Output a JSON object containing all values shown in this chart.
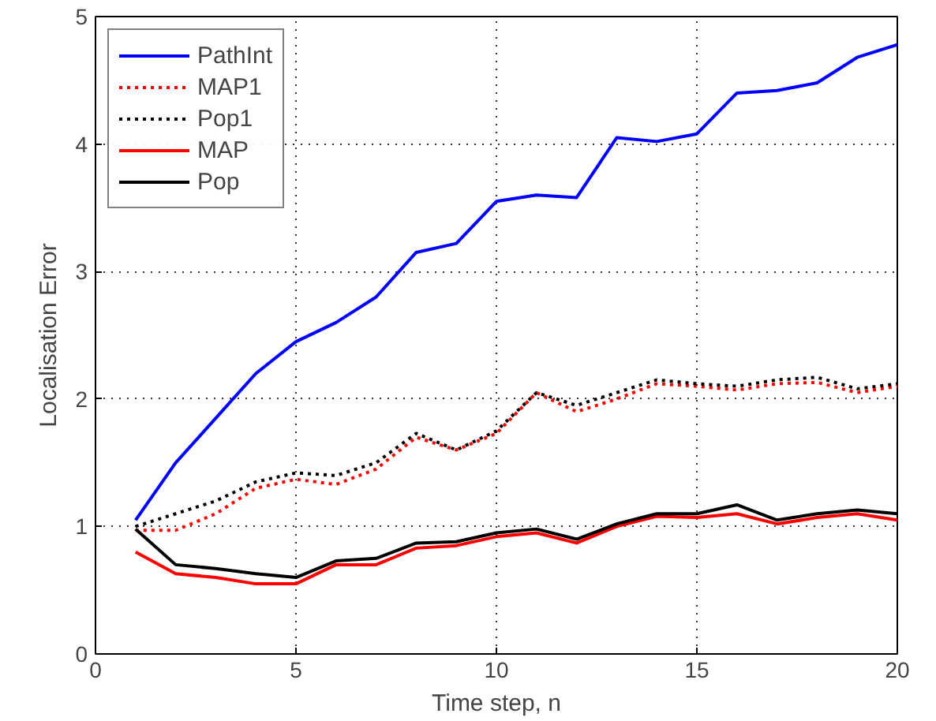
{
  "chart_data": {
    "type": "line",
    "xlabel": "Time step, n",
    "ylabel": "Localisation Error",
    "x": [
      1,
      2,
      3,
      4,
      5,
      6,
      7,
      8,
      9,
      10,
      11,
      12,
      13,
      14,
      15,
      16,
      17,
      18,
      19,
      20
    ],
    "xlim": [
      0,
      20
    ],
    "xticks": [
      0,
      5,
      10,
      15,
      20
    ],
    "ylim": [
      0,
      5
    ],
    "yticks": [
      0,
      1,
      2,
      3,
      4,
      5
    ],
    "grid": true,
    "legend": "top left",
    "marker": "none",
    "series": [
      {
        "name": "PathInt",
        "color": "#0000ff",
        "line_style": "solid",
        "values": [
          1.05,
          1.5,
          1.85,
          2.2,
          2.45,
          2.6,
          2.8,
          3.15,
          3.22,
          3.55,
          3.6,
          3.58,
          4.05,
          4.02,
          4.08,
          4.4,
          4.42,
          4.48,
          4.68,
          4.78
        ]
      },
      {
        "name": "MAP1",
        "color": "#ff0000",
        "line_style": "dotted",
        "values": [
          0.97,
          0.97,
          1.1,
          1.3,
          1.37,
          1.33,
          1.45,
          1.7,
          1.6,
          1.73,
          2.05,
          1.9,
          2.0,
          2.12,
          2.1,
          2.07,
          2.12,
          2.13,
          2.05,
          2.1
        ]
      },
      {
        "name": "Pop1",
        "color": "#000000",
        "line_style": "dotted",
        "values": [
          1.0,
          1.1,
          1.2,
          1.35,
          1.42,
          1.4,
          1.5,
          1.73,
          1.6,
          1.75,
          2.05,
          1.95,
          2.05,
          2.15,
          2.12,
          2.1,
          2.15,
          2.17,
          2.08,
          2.12
        ]
      },
      {
        "name": "MAP",
        "color": "#ff0000",
        "line_style": "solid",
        "values": [
          0.8,
          0.63,
          0.6,
          0.55,
          0.55,
          0.7,
          0.7,
          0.83,
          0.85,
          0.92,
          0.95,
          0.87,
          1.0,
          1.08,
          1.07,
          1.1,
          1.02,
          1.07,
          1.1,
          1.05
        ]
      },
      {
        "name": "Pop",
        "color": "#000000",
        "line_style": "solid",
        "values": [
          0.98,
          0.7,
          0.67,
          0.63,
          0.6,
          0.73,
          0.75,
          0.87,
          0.88,
          0.95,
          0.98,
          0.9,
          1.02,
          1.1,
          1.1,
          1.17,
          1.05,
          1.1,
          1.13,
          1.1
        ]
      }
    ]
  }
}
